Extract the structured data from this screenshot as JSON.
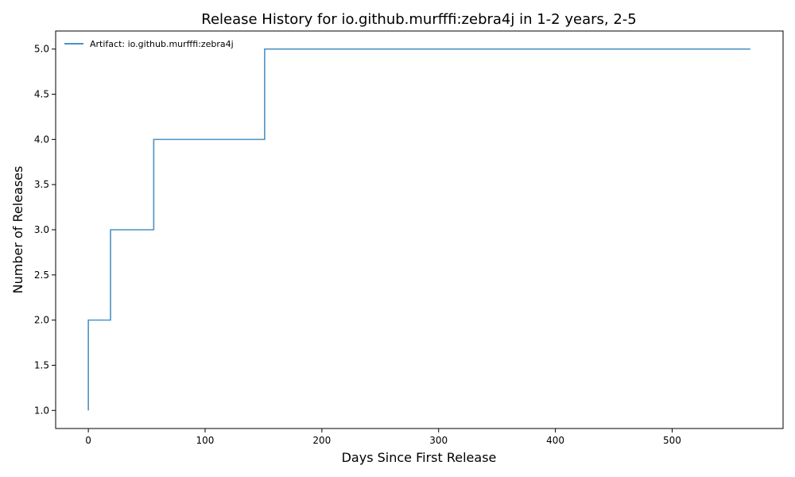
{
  "chart_data": {
    "type": "line",
    "drawstyle": "steps-post",
    "title": "Release History for io.github.murfffi:zebra4j in 1-2 years, 2-5",
    "xlabel": "Days Since First Release",
    "ylabel": "Number of Releases",
    "xlim": [
      -28,
      595
    ],
    "ylim": [
      0.8,
      5.2
    ],
    "xticks": [
      0,
      100,
      200,
      300,
      400,
      500
    ],
    "xtick_labels": [
      "0",
      "100",
      "200",
      "300",
      "400",
      "500"
    ],
    "yticks": [
      1.0,
      1.5,
      2.0,
      2.5,
      3.0,
      3.5,
      4.0,
      4.5,
      5.0
    ],
    "ytick_labels": [
      "1.0",
      "1.5",
      "2.0",
      "2.5",
      "3.0",
      "3.5",
      "4.0",
      "4.5",
      "5.0"
    ],
    "grid": false,
    "legend_position": "top-left",
    "series": [
      {
        "name": "Artifact: io.github.murfffi:zebra4j",
        "color": "#1f77b4",
        "x": [
          0,
          0,
          19,
          56,
          151,
          567
        ],
        "y": [
          1,
          2,
          3,
          4,
          5,
          5
        ]
      }
    ]
  }
}
